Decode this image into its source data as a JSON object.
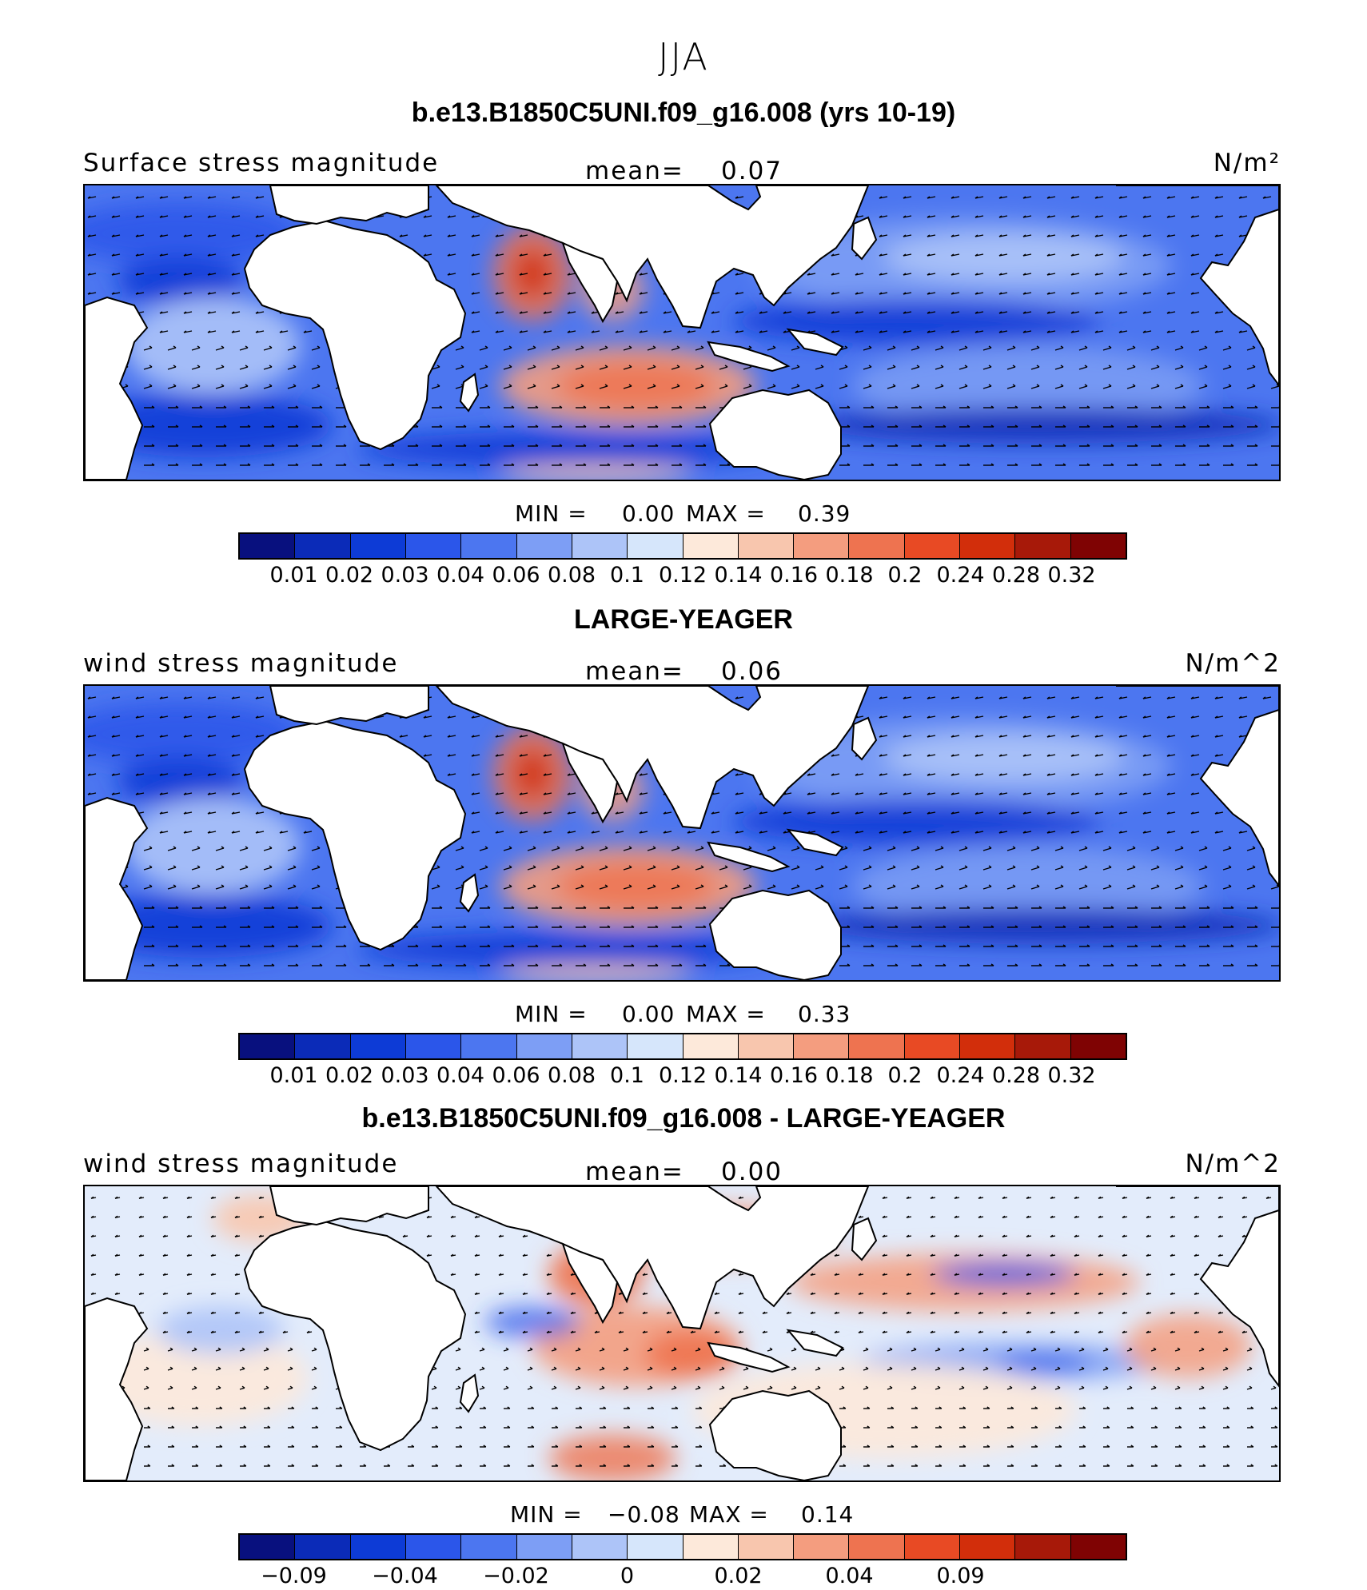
{
  "figure": {
    "season": "JJA",
    "colors": [
      "#08107e",
      "#0b2bb8",
      "#0d3bd6",
      "#2b56ea",
      "#4c76f0",
      "#7d9ef5",
      "#adc4f8",
      "#d6e6fb",
      "#fde9da",
      "#f8c6ae",
      "#f49d7f",
      "#ee7350",
      "#e84a24",
      "#d22e0b",
      "#a71909",
      "#7f0303"
    ]
  },
  "panels": [
    {
      "title": "b.e13.B1850C5UNI.f09_g16.008 (yrs 10-19)",
      "left_label": "Surface stress magnitude",
      "mean_label": "mean=",
      "mean_value": "0.07",
      "units": "N/m²",
      "min_label": "MIN =",
      "min_value": "0.00",
      "max_label": "MAX =",
      "max_value": "0.39",
      "tick_labels": [
        "0.01",
        "0.02",
        "0.03",
        "0.04",
        "0.06",
        "0.08",
        "0.1",
        "0.12",
        "0.14",
        "0.16",
        "0.18",
        "0.2",
        "0.24",
        "0.28",
        "0.32"
      ],
      "map_style": "full"
    },
    {
      "title": "LARGE-YEAGER",
      "left_label": "wind stress magnitude",
      "mean_label": "mean=",
      "mean_value": "0.06",
      "units": "N/m^2",
      "min_label": "MIN =",
      "min_value": "0.00",
      "max_label": "MAX =",
      "max_value": "0.33",
      "tick_labels": [
        "0.01",
        "0.02",
        "0.03",
        "0.04",
        "0.06",
        "0.08",
        "0.1",
        "0.12",
        "0.14",
        "0.16",
        "0.18",
        "0.2",
        "0.24",
        "0.28",
        "0.32"
      ],
      "map_style": "full"
    },
    {
      "title": "b.e13.B1850C5UNI.f09_g16.008 - LARGE-YEAGER",
      "left_label": "wind stress magnitude",
      "mean_label": "mean=",
      "mean_value": "0.00",
      "units": "N/m^2",
      "min_label": "MIN =",
      "min_value": "−0.08",
      "max_label": "MAX =",
      "max_value": "0.14",
      "tick_labels": [
        "−0.09",
        "",
        "−0.04",
        "",
        "−0.02",
        "",
        "0",
        "",
        "0.02",
        "",
        "0.04",
        "",
        "0.09",
        "",
        ""
      ],
      "map_style": "diff"
    }
  ]
}
